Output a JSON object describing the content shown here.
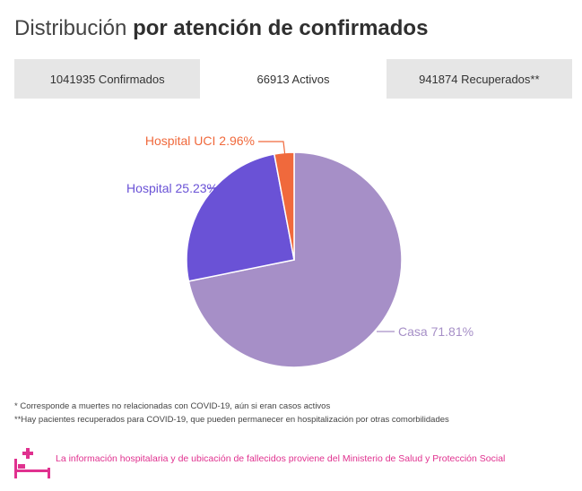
{
  "header": {
    "title_light": "Distribución",
    "title_bold": "por atención de confirmados"
  },
  "tabs": [
    {
      "label": "1041935 Confirmados",
      "active": false
    },
    {
      "label": "66913 Activos",
      "active": true
    },
    {
      "label": "941874 Recuperados**",
      "active": false
    }
  ],
  "chart_data": {
    "type": "pie",
    "title": "",
    "slices": [
      {
        "label": "Casa 71.81%",
        "value": 71.81,
        "color": "#a68fc7"
      },
      {
        "label": "Hospital 25.23%",
        "value": 25.23,
        "color": "#6a52d6"
      },
      {
        "label": "Hospital UCI 2.96%",
        "value": 2.96,
        "color": "#f0693c"
      }
    ]
  },
  "footnotes": [
    "* Corresponde a muertes no relacionadas con COVID-19, aún si eran casos activos",
    "**Hay pacientes recuperados para COVID-19, que pueden permanecer en hospitalización por otras comorbilidades"
  ],
  "info": {
    "text": "La información hospitalaria y de ubicación de fallecidos proviene del Ministerio de Salud y Protección Social",
    "icon": "hospital-bed-icon",
    "color": "#e0318f"
  }
}
